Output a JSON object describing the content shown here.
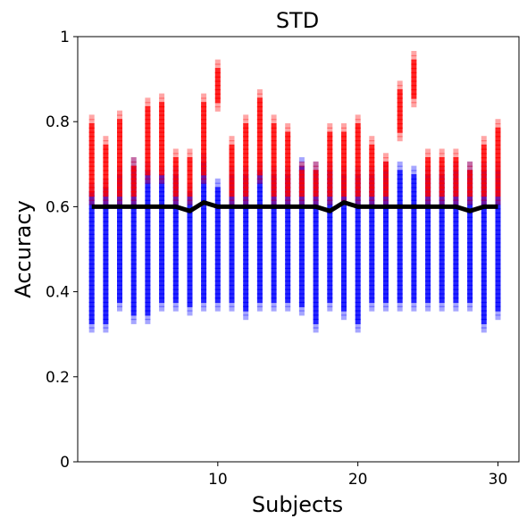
{
  "chart_data": {
    "type": "scatter",
    "title": "STD",
    "xlabel": "Subjects",
    "ylabel": "Accuracy",
    "xlim": [
      0.0,
      31.5
    ],
    "ylim": [
      0,
      1
    ],
    "xticks": [
      10,
      20,
      30
    ],
    "yticks": [
      0,
      0.2,
      0.4,
      0.6,
      0.8,
      1
    ],
    "ytick_labels": [
      "0",
      "0.2",
      "0.4",
      "0.6",
      "0.8",
      "1"
    ],
    "legend": "none",
    "grid": false,
    "colors": {
      "high": "#ff0000",
      "low": "#0000ff",
      "line": "#000000"
    },
    "subjects": [
      1,
      2,
      3,
      4,
      5,
      6,
      7,
      8,
      9,
      10,
      11,
      12,
      13,
      14,
      15,
      16,
      17,
      18,
      19,
      20,
      21,
      22,
      23,
      24,
      25,
      26,
      27,
      28,
      29,
      30
    ],
    "red_range": [
      [
        0.61,
        0.81
      ],
      [
        0.61,
        0.76
      ],
      [
        0.61,
        0.82
      ],
      [
        0.61,
        0.71
      ],
      [
        0.66,
        0.85
      ],
      [
        0.66,
        0.86
      ],
      [
        0.61,
        0.73
      ],
      [
        0.61,
        0.73
      ],
      [
        0.66,
        0.86
      ],
      [
        0.83,
        0.94
      ],
      [
        0.61,
        0.76
      ],
      [
        0.61,
        0.81
      ],
      [
        0.66,
        0.87
      ],
      [
        0.61,
        0.81
      ],
      [
        0.61,
        0.79
      ],
      [
        0.61,
        0.7
      ],
      [
        0.61,
        0.7
      ],
      [
        0.61,
        0.79
      ],
      [
        0.61,
        0.79
      ],
      [
        0.61,
        0.81
      ],
      [
        0.61,
        0.76
      ],
      [
        0.61,
        0.72
      ],
      [
        0.76,
        0.89
      ],
      [
        0.84,
        0.96
      ],
      [
        0.61,
        0.73
      ],
      [
        0.61,
        0.73
      ],
      [
        0.61,
        0.73
      ],
      [
        0.61,
        0.7
      ],
      [
        0.61,
        0.76
      ],
      [
        0.61,
        0.8
      ]
    ],
    "blue_range": [
      [
        0.31,
        0.65
      ],
      [
        0.31,
        0.66
      ],
      [
        0.36,
        0.69
      ],
      [
        0.33,
        0.71
      ],
      [
        0.33,
        0.7
      ],
      [
        0.36,
        0.69
      ],
      [
        0.36,
        0.69
      ],
      [
        0.35,
        0.65
      ],
      [
        0.36,
        0.72
      ],
      [
        0.36,
        0.66
      ],
      [
        0.36,
        0.69
      ],
      [
        0.34,
        0.69
      ],
      [
        0.36,
        0.7
      ],
      [
        0.36,
        0.69
      ],
      [
        0.36,
        0.69
      ],
      [
        0.35,
        0.71
      ],
      [
        0.31,
        0.7
      ],
      [
        0.36,
        0.7
      ],
      [
        0.34,
        0.69
      ],
      [
        0.31,
        0.69
      ],
      [
        0.36,
        0.69
      ],
      [
        0.36,
        0.7
      ],
      [
        0.36,
        0.7
      ],
      [
        0.36,
        0.69
      ],
      [
        0.36,
        0.69
      ],
      [
        0.36,
        0.69
      ],
      [
        0.36,
        0.7
      ],
      [
        0.36,
        0.7
      ],
      [
        0.31,
        0.7
      ],
      [
        0.34,
        0.7
      ]
    ],
    "mean_line": [
      0.6,
      0.6,
      0.6,
      0.6,
      0.6,
      0.6,
      0.6,
      0.59,
      0.61,
      0.6,
      0.6,
      0.6,
      0.6,
      0.6,
      0.6,
      0.6,
      0.6,
      0.59,
      0.61,
      0.6,
      0.6,
      0.6,
      0.6,
      0.6,
      0.6,
      0.6,
      0.6,
      0.59,
      0.6,
      0.6
    ]
  }
}
